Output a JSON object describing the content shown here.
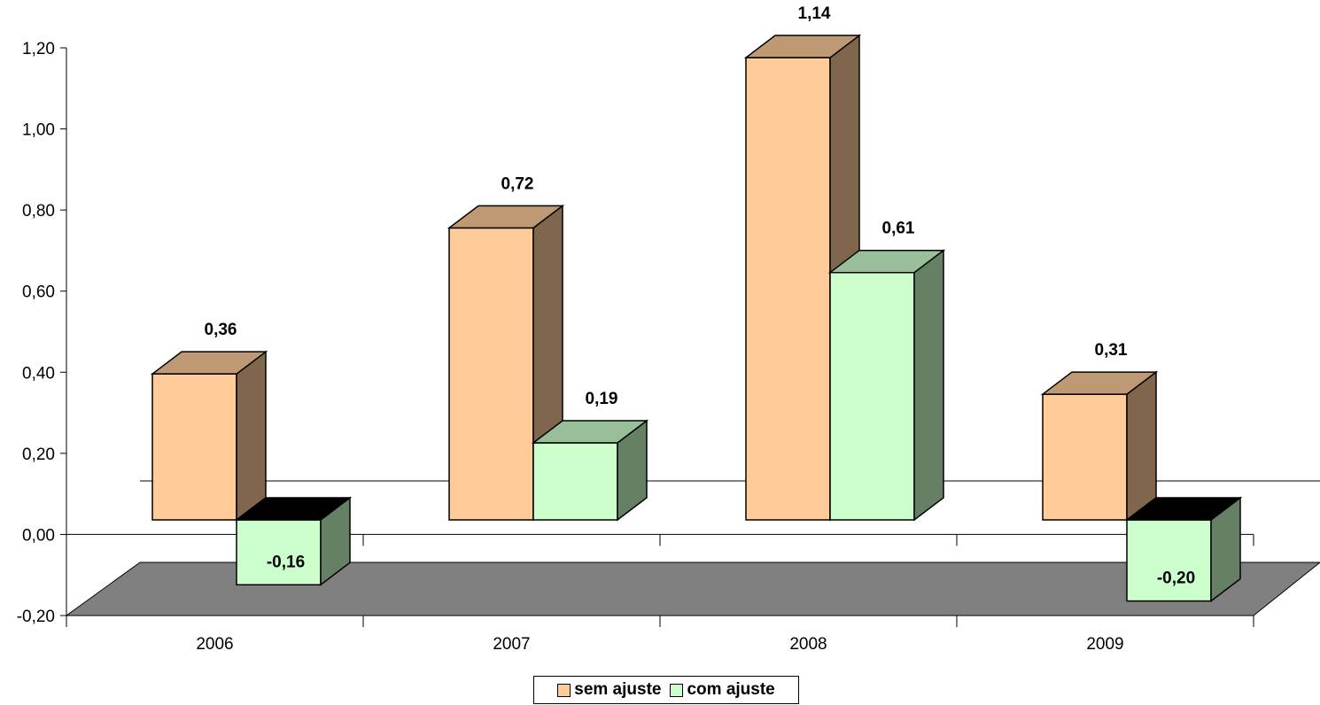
{
  "chart_data": {
    "type": "bar",
    "categories": [
      "2006",
      "2007",
      "2008",
      "2009"
    ],
    "series": [
      {
        "name": "sem ajuste",
        "values": [
          0.36,
          0.72,
          1.14,
          0.31
        ],
        "labels": [
          "0,36",
          "0,72",
          "1,14",
          "0,31"
        ],
        "color": "#FFCC99"
      },
      {
        "name": "com ajuste",
        "values": [
          -0.16,
          0.19,
          0.61,
          -0.2
        ],
        "labels": [
          "-0,16",
          "0,19",
          "0,61",
          "-0,20"
        ],
        "color": "#CCFFCC"
      }
    ],
    "y_ticks": [
      1.2,
      1.0,
      0.8,
      0.6,
      0.4,
      0.2,
      0.0,
      -0.2
    ],
    "y_tick_labels": [
      "1,20",
      "1,00",
      "0,80",
      "0,60",
      "0,40",
      "0,20",
      "0,00",
      "-0,20"
    ],
    "ylim": [
      -0.2,
      1.2
    ],
    "title": "",
    "xlabel": "",
    "ylabel": "",
    "legend_position": "bottom",
    "floor_color": "#808080",
    "style": "3d-clustered-column"
  }
}
